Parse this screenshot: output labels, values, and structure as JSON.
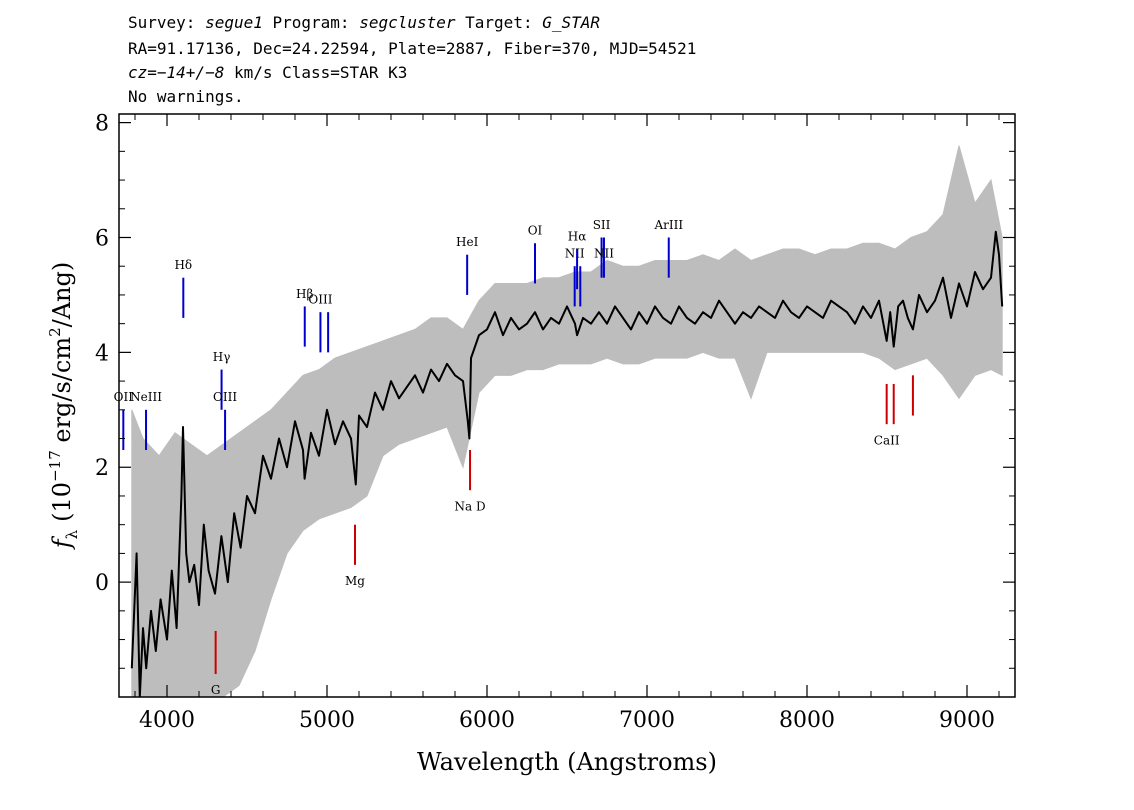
{
  "header": {
    "line1": {
      "survey_label": "Survey: ",
      "survey": "segue1",
      "program_label": " Program: ",
      "program": "segcluster",
      "target_label": " Target: ",
      "target": "G_STAR"
    },
    "line2": "RA=91.17136, Dec=24.22594, Plate=2887, Fiber=370, MJD=54521",
    "line3": {
      "cz_label": "cz",
      "cz": "=−14+/−8",
      "cz_tail": " km/s Class=STAR K3"
    },
    "line4": "No warnings."
  },
  "chart_data": {
    "type": "line",
    "xlabel": "Wavelength (Angstroms)",
    "ylabel_parts": {
      "symbol": "f",
      "symbol_sub": "λ",
      "open": "(10",
      "exp": "−17",
      "mid": " erg/s/cm",
      "exp2": "2",
      "close": "/Ang)"
    },
    "xlim": [
      3700,
      9300
    ],
    "ylim": [
      -2,
      8.15
    ],
    "x_ticks": [
      4000,
      5000,
      6000,
      7000,
      8000,
      9000
    ],
    "x_tick_labels": [
      "4000",
      "5000",
      "6000",
      "7000",
      "8000",
      "9000"
    ],
    "y_ticks": [
      0,
      2,
      4,
      6,
      8
    ],
    "y_tick_labels": [
      "0",
      "2",
      "4",
      "6",
      "8"
    ],
    "series": [
      {
        "role": "flux",
        "color": "#000000",
        "x": [
          3780,
          3810,
          3830,
          3850,
          3870,
          3900,
          3930,
          3960,
          4000,
          4030,
          4060,
          4090,
          4100,
          4120,
          4140,
          4170,
          4200,
          4230,
          4260,
          4300,
          4340,
          4380,
          4420,
          4460,
          4500,
          4550,
          4600,
          4650,
          4700,
          4750,
          4800,
          4850,
          4860,
          4900,
          4950,
          5000,
          5050,
          5100,
          5150,
          5180,
          5200,
          5250,
          5300,
          5350,
          5400,
          5450,
          5500,
          5550,
          5600,
          5650,
          5700,
          5750,
          5800,
          5850,
          5880,
          5890,
          5900,
          5950,
          6000,
          6050,
          6100,
          6150,
          6200,
          6250,
          6300,
          6350,
          6400,
          6450,
          6500,
          6550,
          6563,
          6600,
          6650,
          6700,
          6750,
          6800,
          6850,
          6900,
          6950,
          7000,
          7050,
          7100,
          7150,
          7200,
          7250,
          7300,
          7350,
          7400,
          7450,
          7500,
          7550,
          7600,
          7650,
          7700,
          7750,
          7800,
          7850,
          7900,
          7950,
          8000,
          8050,
          8100,
          8150,
          8200,
          8250,
          8300,
          8350,
          8400,
          8450,
          8498,
          8520,
          8542,
          8570,
          8600,
          8630,
          8662,
          8700,
          8750,
          8800,
          8850,
          8900,
          8950,
          9000,
          9050,
          9100,
          9150,
          9180,
          9200,
          9220
        ],
        "y": [
          -1.5,
          0.5,
          -2.0,
          -0.8,
          -1.5,
          -0.5,
          -1.2,
          -0.3,
          -1.0,
          0.2,
          -0.8,
          1.5,
          2.7,
          0.5,
          0.0,
          0.3,
          -0.4,
          1.0,
          0.2,
          -0.2,
          0.8,
          0.0,
          1.2,
          0.6,
          1.5,
          1.2,
          2.2,
          1.8,
          2.5,
          2.0,
          2.8,
          2.3,
          1.8,
          2.6,
          2.2,
          3.0,
          2.4,
          2.8,
          2.5,
          1.7,
          2.9,
          2.7,
          3.3,
          3.0,
          3.5,
          3.2,
          3.4,
          3.6,
          3.3,
          3.7,
          3.5,
          3.8,
          3.6,
          3.5,
          2.8,
          2.5,
          3.9,
          4.3,
          4.4,
          4.7,
          4.3,
          4.6,
          4.4,
          4.5,
          4.7,
          4.4,
          4.6,
          4.5,
          4.8,
          4.5,
          4.3,
          4.6,
          4.5,
          4.7,
          4.5,
          4.8,
          4.6,
          4.4,
          4.7,
          4.5,
          4.8,
          4.6,
          4.5,
          4.8,
          4.6,
          4.5,
          4.7,
          4.6,
          4.9,
          4.7,
          4.5,
          4.7,
          4.6,
          4.8,
          4.7,
          4.6,
          4.9,
          4.7,
          4.6,
          4.8,
          4.7,
          4.6,
          4.9,
          4.8,
          4.7,
          4.5,
          4.8,
          4.6,
          4.9,
          4.2,
          4.7,
          4.1,
          4.8,
          4.9,
          4.6,
          4.4,
          5.0,
          4.7,
          4.9,
          5.3,
          4.6,
          5.2,
          4.8,
          5.4,
          5.1,
          5.3,
          6.1,
          5.7,
          4.8
        ]
      },
      {
        "role": "error_envelope",
        "color": "#bdbdbd",
        "x": [
          3780,
          3850,
          3950,
          4050,
          4150,
          4250,
          4350,
          4450,
          4550,
          4650,
          4750,
          4850,
          4950,
          5050,
          5150,
          5250,
          5350,
          5450,
          5550,
          5650,
          5750,
          5850,
          5950,
          6050,
          6150,
          6250,
          6350,
          6450,
          6550,
          6650,
          6750,
          6850,
          6950,
          7050,
          7150,
          7250,
          7350,
          7450,
          7550,
          7650,
          7750,
          7850,
          7950,
          8050,
          8150,
          8250,
          8350,
          8450,
          8550,
          8650,
          8750,
          8850,
          8950,
          9050,
          9150,
          9220
        ],
        "y_high": [
          3.0,
          2.5,
          2.2,
          2.6,
          2.4,
          2.2,
          2.4,
          2.6,
          2.8,
          3.0,
          3.3,
          3.6,
          3.7,
          3.9,
          4.0,
          4.1,
          4.2,
          4.3,
          4.4,
          4.6,
          4.6,
          4.4,
          4.9,
          5.2,
          5.2,
          5.2,
          5.3,
          5.3,
          5.4,
          5.4,
          5.6,
          5.5,
          5.5,
          5.6,
          5.6,
          5.6,
          5.7,
          5.6,
          5.8,
          5.6,
          5.7,
          5.8,
          5.8,
          5.7,
          5.8,
          5.8,
          5.9,
          5.9,
          5.8,
          6.0,
          6.1,
          6.4,
          7.6,
          6.6,
          7.0,
          6.0
        ],
        "y_low": [
          -2.0,
          -2.0,
          -2.0,
          -2.0,
          -2.0,
          -2.0,
          -2.0,
          -1.8,
          -1.2,
          -0.3,
          0.5,
          0.9,
          1.1,
          1.2,
          1.3,
          1.5,
          2.2,
          2.4,
          2.5,
          2.6,
          2.7,
          2.0,
          3.3,
          3.6,
          3.6,
          3.7,
          3.7,
          3.8,
          3.8,
          3.8,
          3.9,
          3.8,
          3.8,
          3.9,
          3.9,
          3.9,
          4.0,
          3.9,
          3.9,
          3.2,
          4.0,
          4.0,
          4.0,
          4.0,
          4.0,
          4.0,
          4.0,
          3.9,
          3.7,
          3.8,
          3.9,
          3.6,
          3.2,
          3.6,
          3.7,
          3.6
        ]
      }
    ],
    "emission_lines": [
      {
        "label": "OII",
        "x": 3727,
        "y1": 2.3,
        "y2": 3.0,
        "label_y": 3.15,
        "color": "#0000cc"
      },
      {
        "label": "NeIII",
        "x": 3869,
        "y1": 2.3,
        "y2": 3.0,
        "label_y": 3.15,
        "color": "#0000cc"
      },
      {
        "label": "Hδ",
        "x": 4102,
        "y1": 4.6,
        "y2": 5.3,
        "label_y": 5.45,
        "color": "#0000cc"
      },
      {
        "label": "Hγ",
        "x": 4341,
        "y1": 3.0,
        "y2": 3.7,
        "label_y": 3.85,
        "color": "#0000cc"
      },
      {
        "label": "OIII",
        "x": 4363,
        "y1": 2.3,
        "y2": 3.0,
        "label_y": 3.15,
        "color": "#0000cc"
      },
      {
        "label": "Hβ",
        "x": 4861,
        "y1": 4.1,
        "y2": 4.8,
        "label_y": 4.95,
        "color": "#0000cc"
      },
      {
        "label": "OIII",
        "x": 4959,
        "y1": 4.0,
        "y2": 4.7,
        "label_y": 4.85,
        "color": "#0000cc"
      },
      {
        "label": "",
        "x": 5007,
        "y1": 4.0,
        "y2": 4.7,
        "label_y": 4.85,
        "color": "#0000cc"
      },
      {
        "label": "HeI",
        "x": 5876,
        "y1": 5.0,
        "y2": 5.7,
        "label_y": 5.85,
        "color": "#0000cc"
      },
      {
        "label": "OI",
        "x": 6300,
        "y1": 5.2,
        "y2": 5.9,
        "label_y": 6.05,
        "color": "#0000cc"
      },
      {
        "label": "NII",
        "x": 6548,
        "y1": 4.8,
        "y2": 5.5,
        "label_y": 5.65,
        "color": "#0000cc"
      },
      {
        "label": "Hα",
        "x": 6563,
        "y1": 5.1,
        "y2": 5.8,
        "label_y": 5.95,
        "color": "#0000cc"
      },
      {
        "label": "",
        "x": 6583,
        "y1": 4.8,
        "y2": 5.5,
        "label_y": 5.65,
        "color": "#0000cc"
      },
      {
        "label": "SII",
        "x": 6716,
        "y1": 5.3,
        "y2": 6.0,
        "label_y": 6.15,
        "color": "#0000cc"
      },
      {
        "label": "NII",
        "x": 6731,
        "y1": 5.3,
        "y2": 6.0,
        "label_y": 5.65,
        "color": "#0000cc"
      },
      {
        "label": "ArIII",
        "x": 7136,
        "y1": 5.3,
        "y2": 6.0,
        "label_y": 6.15,
        "color": "#0000cc"
      }
    ],
    "absorption_lines": [
      {
        "label": "G",
        "x": 4304,
        "y1": -1.6,
        "y2": -0.85,
        "label_y": -1.95,
        "color": "#cc0000"
      },
      {
        "label": "Mg",
        "x": 5175,
        "y1": 0.3,
        "y2": 1.0,
        "label_y": -0.05,
        "color": "#cc0000"
      },
      {
        "label": "Na D",
        "x": 5894,
        "y1": 1.6,
        "y2": 2.3,
        "label_y": 1.25,
        "color": "#cc0000"
      },
      {
        "label": "CaII",
        "x": 8498,
        "y1": 2.75,
        "y2": 3.45,
        "label_y": 2.4,
        "color": "#cc0000"
      },
      {
        "label": "",
        "x": 8542,
        "y1": 2.75,
        "y2": 3.45,
        "label_y": 2.4,
        "color": "#cc0000"
      },
      {
        "label": "",
        "x": 8662,
        "y1": 2.9,
        "y2": 3.6,
        "label_y": 2.4,
        "color": "#cc0000"
      }
    ],
    "grid": false,
    "legend": "none"
  }
}
